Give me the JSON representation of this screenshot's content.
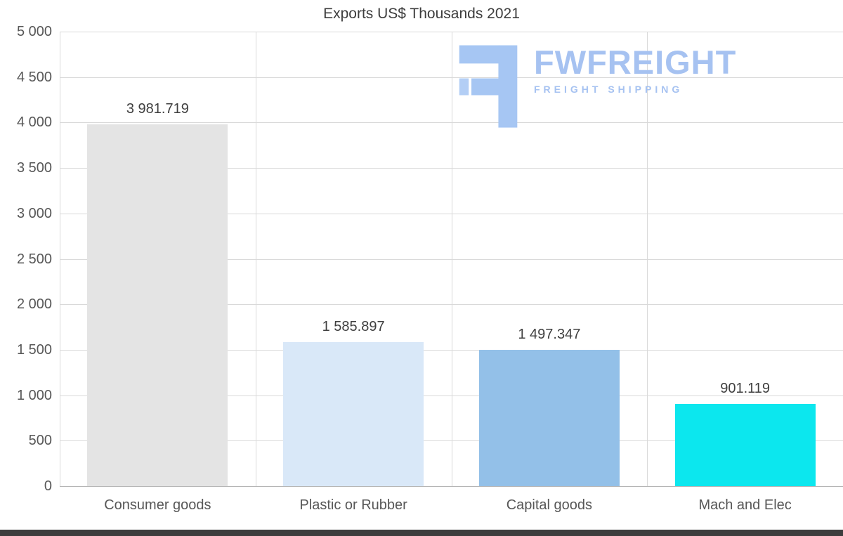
{
  "title": "Exports US$ Thousands 2021",
  "watermark": {
    "brand": "FWFREIGHT",
    "subtitle": "FREIGHT SHIPPING",
    "color": "#a6c2f1"
  },
  "chart_data": {
    "type": "bar",
    "title": "Exports US$ Thousands 2021",
    "categories": [
      "Consumer goods",
      "Plastic or Rubber",
      "Capital goods",
      "Mach and Elec"
    ],
    "values": [
      3981.719,
      1585.897,
      1497.347,
      901.119
    ],
    "value_labels": [
      "3 981.719",
      "1 585.897",
      "1 497.347",
      "901.119"
    ],
    "bar_colors": [
      "#e4e4e4",
      "#d9e8f8",
      "#93c0e8",
      "#0ce7ee"
    ],
    "xlabel": "",
    "ylabel": "",
    "ylim": [
      0,
      5000
    ],
    "ytick_step": 500,
    "ytick_labels": [
      "5 000",
      "4 500",
      "4 000",
      "3 500",
      "3 000",
      "2 500",
      "2 000",
      "1 500",
      "1 000",
      "500",
      "0"
    ],
    "grid": true,
    "legend": "none"
  }
}
